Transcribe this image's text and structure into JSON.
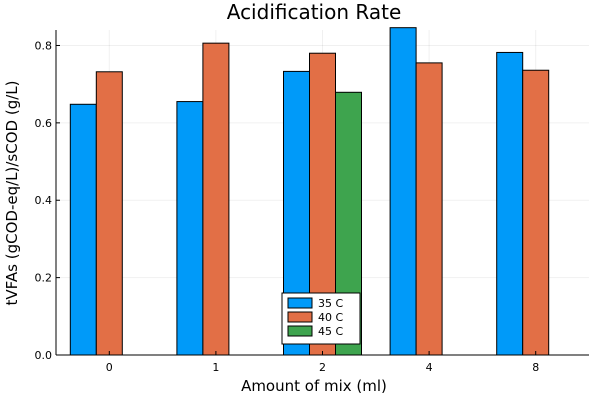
{
  "chart_data": {
    "type": "bar",
    "title": "Acidification Rate",
    "xlabel": "Amount of mix (ml)",
    "ylabel": "tVFAs (gCOD-eq/L)/sCOD (g/L)",
    "categories": [
      "0",
      "1",
      "2",
      "4",
      "8"
    ],
    "ylim": [
      0,
      0.84
    ],
    "yticks": [
      "0.0",
      "0.2",
      "0.4",
      "0.6",
      "0.8"
    ],
    "ytick_values": [
      0,
      0.2,
      0.4,
      0.6,
      0.8
    ],
    "grid": true,
    "legend_position": "bottom-center",
    "series": [
      {
        "name": "35 C",
        "color": "#009af9",
        "values": [
          0.648,
          0.655,
          0.733,
          0.846,
          0.782
        ]
      },
      {
        "name": "40 C",
        "color": "#e26f46",
        "values": [
          0.732,
          0.806,
          0.78,
          0.755,
          0.736
        ]
      },
      {
        "name": "45 C",
        "color": "#3ea44e",
        "values": [
          0,
          0,
          0.679,
          0,
          0
        ]
      }
    ]
  }
}
